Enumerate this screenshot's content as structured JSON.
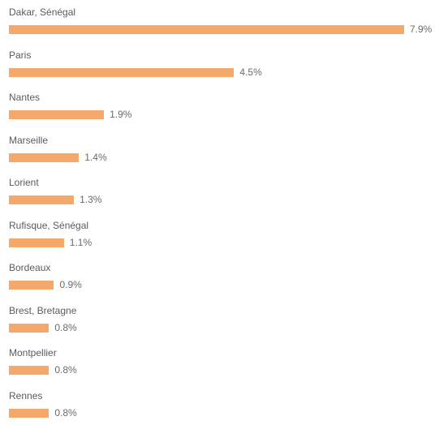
{
  "chart_data": {
    "type": "bar",
    "orientation": "horizontal",
    "bar_color": "#f4a86a",
    "categories": [
      "Dakar, Sénégal",
      "Paris",
      "Nantes",
      "Marseille",
      "Lorient",
      "Rufisque, Sénégal",
      "Bordeaux",
      "Brest, Bretagne",
      "Montpellier",
      "Rennes"
    ],
    "values": [
      7.9,
      4.5,
      1.9,
      1.4,
      1.3,
      1.1,
      0.9,
      0.8,
      0.8,
      0.8
    ],
    "value_labels": [
      "7.9%",
      "4.5%",
      "1.9%",
      "1.4%",
      "1.3%",
      "1.1%",
      "0.9%",
      "0.8%",
      "0.8%",
      "0.8%"
    ],
    "unit": "%"
  }
}
